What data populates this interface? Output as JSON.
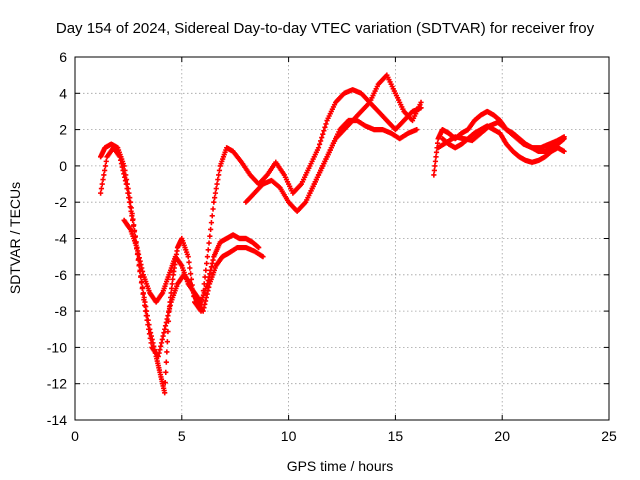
{
  "chart_data": {
    "type": "scatter",
    "title": "Day 154 of 2024, Sidereal Day-to-day VTEC variation (SDTVAR) for receiver froy",
    "xlabel": "GPS time / hours",
    "ylabel": "SDTVAR / TECUs",
    "xlim": [
      0,
      25
    ],
    "ylim": [
      -14,
      6
    ],
    "xticks": [
      "0",
      "5",
      "10",
      "15",
      "20",
      "25"
    ],
    "yticks": [
      "-14",
      "-12",
      "-10",
      "-8",
      "-6",
      "-4",
      "-2",
      "0",
      "2",
      "4",
      "6"
    ],
    "grid": true,
    "marker": "+",
    "color": "#ff0000",
    "series": [
      {
        "x": [
          1.2,
          1.4,
          1.7,
          2.0,
          2.3,
          2.6,
          2.9,
          3.2,
          3.5,
          3.8,
          4.0,
          4.2,
          4.4,
          4.6,
          4.8,
          5.0,
          5.3,
          5.6,
          5.9,
          6.2,
          6.5,
          6.8,
          7.1,
          7.4,
          7.8,
          8.2,
          8.6,
          9.0,
          9.4,
          9.8,
          10.2,
          10.6,
          11.0,
          11.4,
          11.8,
          12.2,
          12.6,
          13.0,
          13.4,
          13.8,
          14.2,
          14.6,
          15.0,
          15.4,
          15.8,
          16.2
        ],
        "y": [
          0.5,
          1.0,
          1.2,
          1.0,
          0.0,
          -2.0,
          -4.5,
          -7.0,
          -9.0,
          -10.5,
          -11.5,
          -12.5,
          -8.0,
          -6.0,
          -4.5,
          -4.0,
          -5.0,
          -7.5,
          -8.0,
          -5.0,
          -2.0,
          0.0,
          1.0,
          0.8,
          0.2,
          -0.5,
          -1.0,
          -0.5,
          0.2,
          -0.5,
          -1.5,
          -1.0,
          0.0,
          1.0,
          2.5,
          3.5,
          4.0,
          4.2,
          4.0,
          3.5,
          4.5,
          5.0,
          4.0,
          3.0,
          2.5,
          3.5
        ]
      },
      {
        "x": [
          1.2,
          1.5,
          1.8,
          2.1,
          2.4,
          2.7,
          3.0,
          3.3,
          3.6,
          3.9,
          4.2,
          4.5,
          4.8,
          5.1,
          5.4,
          5.7,
          6.0,
          6.3,
          6.6,
          6.9,
          7.2,
          7.6,
          8.0,
          8.4,
          8.8
        ],
        "y": [
          -1.5,
          0.5,
          1.0,
          0.5,
          -1.0,
          -3.0,
          -5.5,
          -8.0,
          -10.0,
          -10.5,
          -9.0,
          -7.5,
          -6.5,
          -6.0,
          -6.5,
          -7.5,
          -8.0,
          -6.5,
          -5.5,
          -5.0,
          -4.8,
          -4.5,
          -4.5,
          -4.7,
          -5.0
        ]
      },
      {
        "x": [
          2.3,
          2.6,
          2.9,
          3.2,
          3.5,
          3.8,
          4.1,
          4.4,
          4.7,
          5.0,
          5.3,
          5.6,
          5.9,
          6.2,
          6.5,
          6.8,
          7.1,
          7.4,
          7.7,
          8.0,
          8.3,
          8.6
        ],
        "y": [
          -3.0,
          -3.5,
          -4.5,
          -6.0,
          -7.0,
          -7.5,
          -7.0,
          -6.0,
          -5.0,
          -5.5,
          -6.5,
          -7.0,
          -7.5,
          -6.5,
          -5.0,
          -4.2,
          -4.0,
          -3.8,
          -4.0,
          -4.0,
          -4.2,
          -4.5
        ]
      },
      {
        "x": [
          8.0,
          8.4,
          8.8,
          9.2,
          9.6,
          10.0,
          10.4,
          10.8,
          11.2,
          11.6,
          12.0,
          12.4,
          12.8,
          13.2,
          13.6,
          14.0,
          14.4,
          14.8,
          15.2,
          15.6,
          16.0
        ],
        "y": [
          -2.0,
          -1.5,
          -1.0,
          -0.8,
          -1.2,
          -2.0,
          -2.5,
          -2.0,
          -1.0,
          0.0,
          1.0,
          2.0,
          2.5,
          2.5,
          2.2,
          2.0,
          2.0,
          1.8,
          1.5,
          1.8,
          2.0
        ]
      },
      {
        "x": [
          11.0,
          11.4,
          11.8,
          12.2,
          12.6,
          13.0,
          13.4,
          13.8,
          14.2,
          14.6,
          15.0,
          15.4,
          15.8,
          16.2
        ],
        "y": [
          -1.5,
          -0.5,
          0.5,
          1.5,
          2.0,
          2.5,
          3.0,
          3.5,
          3.0,
          2.5,
          2.0,
          2.5,
          3.0,
          3.2
        ]
      },
      {
        "x": [
          16.8,
          17.0,
          17.2,
          17.5,
          17.8,
          18.1,
          18.4,
          18.7,
          19.0,
          19.3,
          19.6,
          19.9,
          20.2,
          20.5,
          20.8,
          21.1,
          21.4,
          21.7,
          22.0,
          22.3,
          22.6,
          22.9
        ],
        "y": [
          -0.5,
          1.5,
          2.0,
          1.8,
          1.5,
          1.8,
          2.0,
          2.5,
          2.8,
          3.0,
          2.8,
          2.5,
          2.0,
          1.8,
          1.5,
          1.2,
          1.0,
          0.8,
          0.8,
          1.0,
          1.2,
          1.5
        ]
      },
      {
        "x": [
          17.2,
          17.5,
          17.8,
          18.1,
          18.4,
          18.7,
          19.0,
          19.3,
          19.6,
          19.9,
          20.2,
          20.5,
          20.8,
          21.1,
          21.4,
          21.7,
          22.0,
          22.3,
          22.6,
          22.9
        ],
        "y": [
          1.5,
          1.2,
          1.0,
          1.2,
          1.5,
          1.8,
          2.0,
          2.2,
          2.0,
          1.8,
          1.2,
          0.8,
          0.5,
          0.3,
          0.2,
          0.3,
          0.5,
          0.8,
          1.0,
          0.8
        ]
      },
      {
        "x": [
          17.0,
          17.4,
          17.8,
          18.2,
          18.6,
          19.0,
          19.4,
          19.8,
          20.2,
          20.6,
          21.0,
          21.4,
          21.8,
          22.2,
          22.6,
          22.9
        ],
        "y": [
          1.0,
          1.3,
          1.6,
          1.5,
          1.4,
          1.8,
          2.2,
          2.4,
          2.0,
          1.6,
          1.2,
          1.0,
          1.0,
          1.2,
          1.4,
          1.6
        ]
      }
    ]
  }
}
